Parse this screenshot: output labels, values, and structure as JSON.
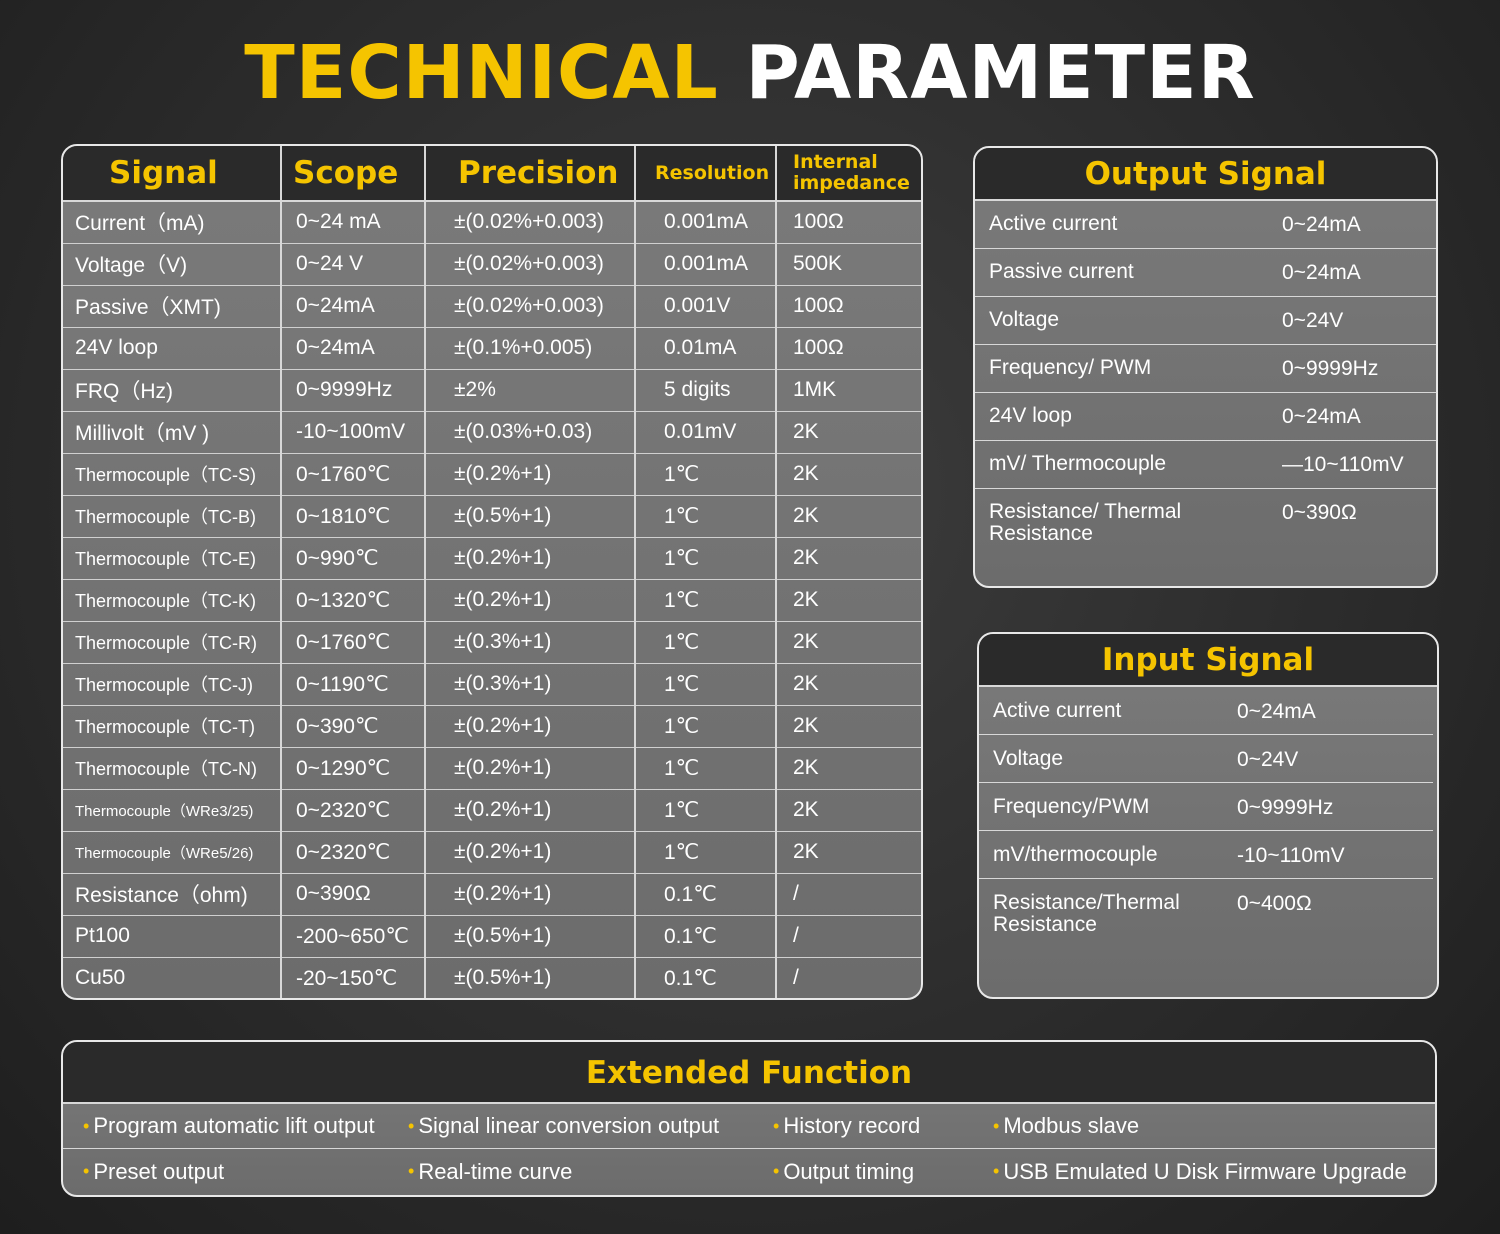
{
  "title": {
    "part1": "TECHNICAL",
    "part2": "PARAMETER"
  },
  "main_table": {
    "headers": [
      "Signal",
      "Scope",
      "Precision",
      "Resolution",
      "Internal impedance"
    ],
    "rows": [
      [
        "Current（mA)",
        "0~24 mA",
        "±(0.02%+0.003)",
        "0.001mA",
        "100Ω"
      ],
      [
        "Voltage（V)",
        "0~24 V",
        "±(0.02%+0.003)",
        "0.001mA",
        "500K"
      ],
      [
        "Passive（XMT)",
        "0~24mA",
        "±(0.02%+0.003)",
        "0.001V",
        "100Ω"
      ],
      [
        "24V loop",
        "0~24mA",
        "±(0.1%+0.005)",
        "0.01mA",
        "100Ω"
      ],
      [
        "FRQ（Hz)",
        "0~9999Hz",
        "±2%",
        "5 digits",
        "1MK"
      ],
      [
        "Millivolt（mV )",
        "-10~100mV",
        "±(0.03%+0.03)",
        "0.01mV",
        "2K"
      ],
      [
        "Thermocouple（TC-S)",
        "0~1760℃",
        "±(0.2%+1)",
        "1℃",
        "2K"
      ],
      [
        "Thermocouple（TC-B)",
        "0~1810℃",
        "±(0.5%+1)",
        "1℃",
        "2K"
      ],
      [
        "Thermocouple（TC-E)",
        "0~990℃",
        "±(0.2%+1)",
        "1℃",
        "2K"
      ],
      [
        "Thermocouple（TC-K)",
        "0~1320℃",
        "±(0.2%+1)",
        "1℃",
        "2K"
      ],
      [
        "Thermocouple（TC-R)",
        "0~1760℃",
        "±(0.3%+1)",
        "1℃",
        "2K"
      ],
      [
        "Thermocouple（TC-J)",
        "0~1190℃",
        "±(0.3%+1)",
        "1℃",
        "2K"
      ],
      [
        "Thermocouple（TC-T)",
        "0~390℃",
        "±(0.2%+1)",
        "1℃",
        "2K"
      ],
      [
        "Thermocouple（TC-N)",
        "0~1290℃",
        "±(0.2%+1)",
        "1℃",
        "2K"
      ],
      [
        "Thermocouple（WRe3/25)",
        "0~2320℃",
        "±(0.2%+1)",
        "1℃",
        "2K"
      ],
      [
        "Thermocouple（WRe5/26)",
        "0~2320℃",
        "±(0.2%+1)",
        "1℃",
        "2K"
      ],
      [
        "Resistance（ohm)",
        "0~390Ω",
        "±(0.2%+1)",
        "0.1℃",
        "/"
      ],
      [
        "Pt100",
        "-200~650℃",
        "±(0.5%+1)",
        "0.1℃",
        "/"
      ],
      [
        "Cu50",
        "-20~150℃",
        "±(0.5%+1)",
        "0.1℃",
        "/"
      ]
    ]
  },
  "output_signal": {
    "title": "Output Signal",
    "rows": [
      [
        "Active current",
        "0~24mA"
      ],
      [
        "Passive current",
        "0~24mA"
      ],
      [
        "Voltage",
        "0~24V"
      ],
      [
        "Frequency/ PWM",
        "0~9999Hz"
      ],
      [
        "24V loop",
        "0~24mA"
      ],
      [
        "mV/ Thermocouple",
        "—10~110mV"
      ],
      [
        "Resistance/ Thermal Resistance",
        "0~390Ω"
      ]
    ]
  },
  "input_signal": {
    "title": "Input Signal",
    "rows": [
      [
        "Active current",
        "0~24mA"
      ],
      [
        "Voltage",
        "0~24V"
      ],
      [
        "Frequency/PWM",
        "0~9999Hz"
      ],
      [
        "mV/thermocouple",
        "-10~110mV"
      ],
      [
        "Resistance/Thermal Resistance",
        "0~400Ω"
      ]
    ]
  },
  "extended_function": {
    "title": "Extended Function",
    "rows": [
      [
        "Program automatic lift output",
        "Signal linear conversion output",
        "History record",
        "Modbus slave"
      ],
      [
        "Preset output",
        "Real-time curve",
        "Output timing",
        "USB Emulated U Disk Firmware Upgrade"
      ]
    ]
  },
  "colors": {
    "accent": "#f5c400",
    "header_bg": "#2a2a2a",
    "panel_bg": "#757575"
  }
}
